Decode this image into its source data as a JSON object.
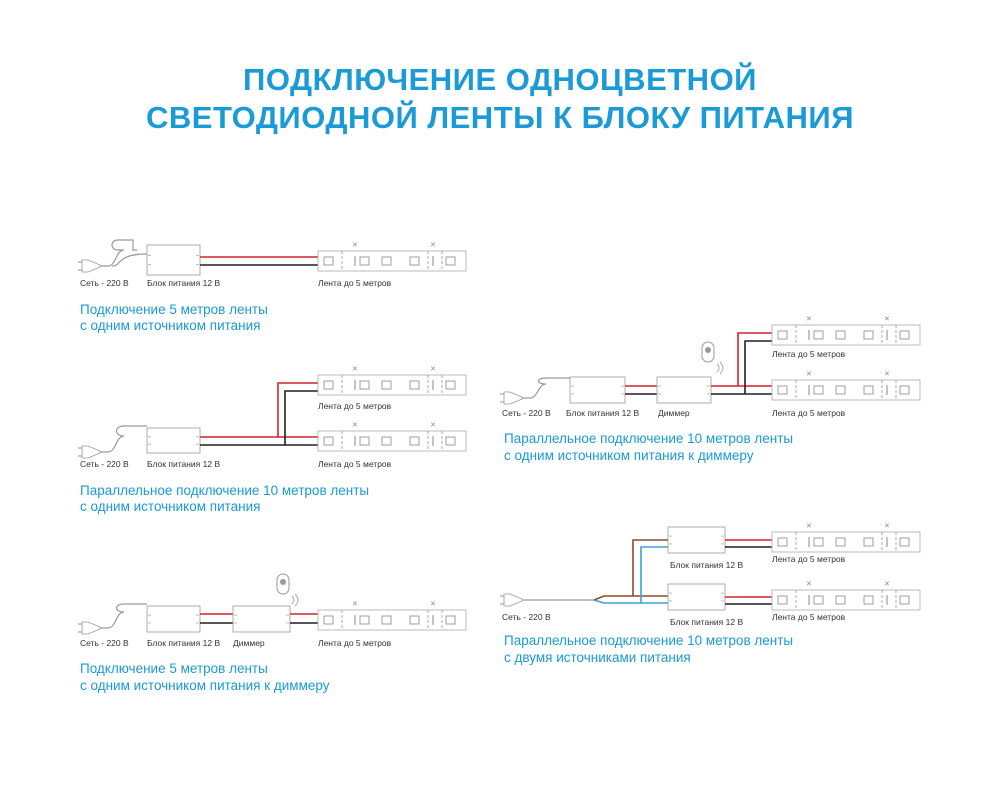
{
  "title": {
    "line1": "ПОДКЛЮЧЕНИЕ ОДНОЦВЕТНОЙ",
    "line2": "СВЕТОДИОДНОЙ ЛЕНТЫ К БЛОКУ ПИТАНИЯ"
  },
  "colors": {
    "accent": "#1a9ad6",
    "wire_positive": "#d2232a",
    "wire_negative": "#231f20",
    "wire_phase": "#8b4a2b",
    "wire_neutral": "#3aa0dc",
    "outline": "#999999"
  },
  "diagrams": [
    {
      "mains": "Сеть - 220 В",
      "psu": "Блок питания 12 В",
      "strip": "Лента до 5 метров",
      "caption1": "Подключение 5 метров ленты",
      "caption2": "с одним источником питания"
    },
    {
      "mains": "Сеть - 220 В",
      "psu": "Блок питания 12 В",
      "strip_top": "Лента до 5 метров",
      "strip_bottom": "Лента до 5 метров",
      "caption1": "Параллельное подключение 10 метров ленты",
      "caption2": "с одним источником питания"
    },
    {
      "mains": "Сеть - 220 В",
      "psu": "Блок питания 12 В",
      "dimmer": "Диммер",
      "strip": "Лента до 5 метров",
      "caption1": "Подключение 5 метров ленты",
      "caption2": "с одним источником питания к диммеру"
    },
    {
      "mains": "Сеть - 220 В",
      "psu": "Блок питания 12 В",
      "dimmer": "Диммер",
      "strip_top": "Лента до 5 метров",
      "strip_bottom": "Лента до 5 метров",
      "caption1": "Параллельное подключение 10 метров ленты",
      "caption2": "с одним источником питания к диммеру"
    },
    {
      "mains": "Сеть - 220 В",
      "psu_top": "Блок питания 12 В",
      "psu_bottom": "Блок питания 12 В",
      "strip_top": "Лента до 5 метров",
      "strip_bottom": "Лента до 5 метров",
      "caption1": "Параллельное подключение 10 метров ленты",
      "caption2": "с двумя источниками питания"
    }
  ]
}
